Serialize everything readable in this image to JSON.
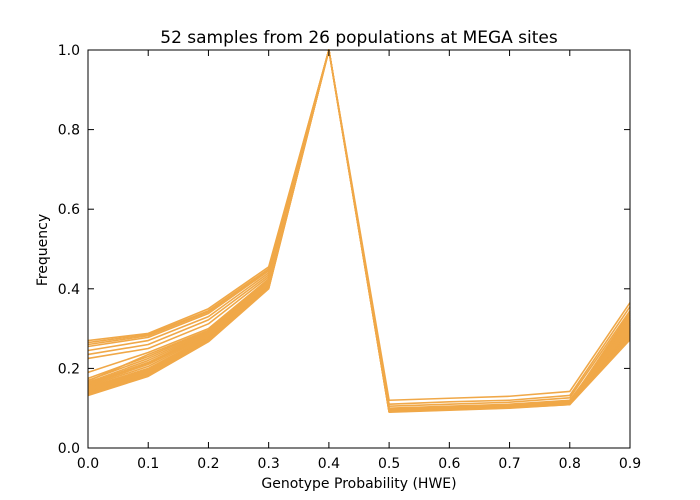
{
  "chart_data": {
    "type": "line",
    "title": "52 samples from 26 populations at MEGA sites",
    "xlabel": "Genotype Probability (HWE)",
    "ylabel": "Frequency",
    "xlim": [
      0.0,
      0.9
    ],
    "ylim": [
      0.0,
      1.0
    ],
    "x": [
      0.0,
      0.1,
      0.2,
      0.3,
      0.4,
      0.5,
      0.6,
      0.7,
      0.8,
      0.9
    ],
    "x_ticks": [
      "0.0",
      "0.1",
      "0.2",
      "0.3",
      "0.4",
      "0.5",
      "0.6",
      "0.7",
      "0.8",
      "0.9"
    ],
    "y_ticks": [
      "0.0",
      "0.2",
      "0.4",
      "0.6",
      "0.8",
      "1.0"
    ],
    "grid": false,
    "legend": "none",
    "line_color": "#f0a848",
    "sample_count": 52,
    "series": [
      {
        "values": [
          0.27,
          0.288,
          0.35,
          0.455,
          1.0,
          0.095,
          0.1,
          0.105,
          0.115,
          0.34
        ]
      },
      {
        "values": [
          0.265,
          0.285,
          0.345,
          0.45,
          1.0,
          0.095,
          0.1,
          0.105,
          0.115,
          0.335
        ]
      },
      {
        "values": [
          0.26,
          0.282,
          0.342,
          0.448,
          1.0,
          0.094,
          0.099,
          0.104,
          0.114,
          0.33
        ]
      },
      {
        "values": [
          0.255,
          0.278,
          0.338,
          0.445,
          1.0,
          0.094,
          0.099,
          0.104,
          0.114,
          0.325
        ]
      },
      {
        "values": [
          0.245,
          0.27,
          0.33,
          0.44,
          1.0,
          0.12,
          0.125,
          0.13,
          0.142,
          0.365
        ]
      },
      {
        "values": [
          0.235,
          0.26,
          0.322,
          0.435,
          1.0,
          0.11,
          0.116,
          0.12,
          0.132,
          0.355
        ]
      },
      {
        "values": [
          0.225,
          0.25,
          0.312,
          0.43,
          1.0,
          0.105,
          0.11,
          0.115,
          0.126,
          0.345
        ]
      },
      {
        "values": [
          0.19,
          0.24,
          0.3,
          0.425,
          1.0,
          0.1,
          0.105,
          0.11,
          0.12,
          0.32
        ]
      },
      {
        "values": [
          0.175,
          0.23,
          0.295,
          0.42,
          1.0,
          0.098,
          0.103,
          0.108,
          0.118,
          0.315
        ]
      },
      {
        "values": [
          0.17,
          0.225,
          0.292,
          0.418,
          1.0,
          0.097,
          0.102,
          0.107,
          0.117,
          0.31
        ]
      },
      {
        "values": [
          0.165,
          0.22,
          0.29,
          0.416,
          1.0,
          0.096,
          0.101,
          0.106,
          0.116,
          0.305
        ]
      },
      {
        "values": [
          0.162,
          0.215,
          0.288,
          0.414,
          1.0,
          0.095,
          0.1,
          0.105,
          0.115,
          0.3
        ]
      },
      {
        "values": [
          0.158,
          0.21,
          0.285,
          0.412,
          1.0,
          0.095,
          0.1,
          0.105,
          0.114,
          0.298
        ]
      },
      {
        "values": [
          0.155,
          0.205,
          0.283,
          0.41,
          1.0,
          0.094,
          0.099,
          0.104,
          0.113,
          0.296
        ]
      },
      {
        "values": [
          0.152,
          0.2,
          0.28,
          0.409,
          1.0,
          0.094,
          0.099,
          0.104,
          0.113,
          0.294
        ]
      },
      {
        "values": [
          0.15,
          0.198,
          0.278,
          0.408,
          1.0,
          0.093,
          0.098,
          0.103,
          0.112,
          0.292
        ]
      },
      {
        "values": [
          0.148,
          0.195,
          0.276,
          0.407,
          1.0,
          0.093,
          0.098,
          0.103,
          0.112,
          0.29
        ]
      },
      {
        "values": [
          0.145,
          0.192,
          0.274,
          0.406,
          1.0,
          0.092,
          0.097,
          0.102,
          0.111,
          0.288
        ]
      },
      {
        "values": [
          0.142,
          0.19,
          0.273,
          0.405,
          1.0,
          0.092,
          0.097,
          0.102,
          0.111,
          0.286
        ]
      },
      {
        "values": [
          0.14,
          0.187,
          0.271,
          0.404,
          1.0,
          0.092,
          0.097,
          0.102,
          0.11,
          0.284
        ]
      },
      {
        "values": [
          0.138,
          0.185,
          0.27,
          0.403,
          1.0,
          0.091,
          0.096,
          0.101,
          0.11,
          0.282
        ]
      },
      {
        "values": [
          0.136,
          0.183,
          0.269,
          0.402,
          1.0,
          0.091,
          0.096,
          0.101,
          0.11,
          0.28
        ]
      },
      {
        "values": [
          0.134,
          0.181,
          0.268,
          0.401,
          1.0,
          0.091,
          0.096,
          0.101,
          0.109,
          0.276
        ]
      },
      {
        "values": [
          0.132,
          0.18,
          0.267,
          0.4,
          1.0,
          0.09,
          0.095,
          0.1,
          0.109,
          0.272
        ]
      },
      {
        "values": [
          0.168,
          0.235,
          0.296,
          0.422,
          1.0,
          0.099,
          0.104,
          0.109,
          0.119,
          0.325
        ]
      },
      {
        "values": [
          0.16,
          0.212,
          0.287,
          0.413,
          1.0,
          0.096,
          0.101,
          0.106,
          0.115,
          0.302
        ]
      }
    ]
  }
}
